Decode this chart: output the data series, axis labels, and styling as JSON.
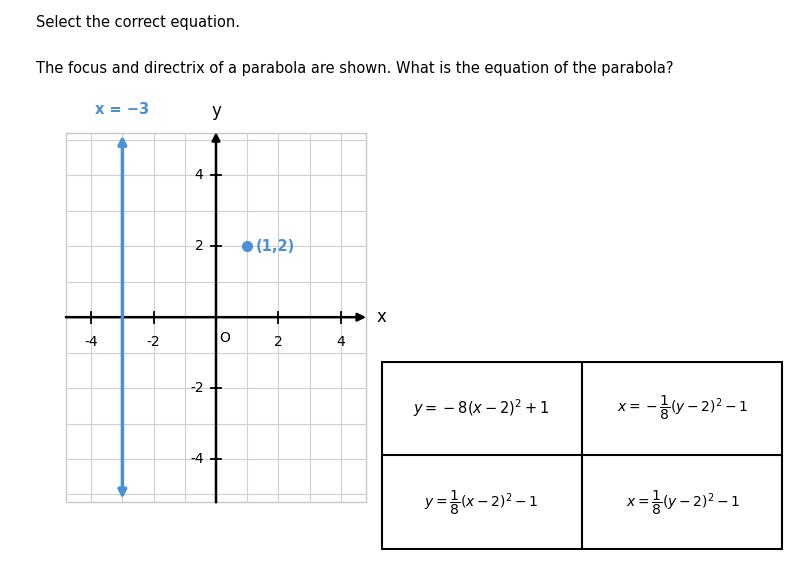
{
  "title_line1": "Select the correct equation.",
  "title_line2": "The focus and directrix of a parabola are shown. What is the equation of the parabola?",
  "directrix_label": "x = −3",
  "directrix_x": -3,
  "focus_x": 1,
  "focus_y": 2,
  "focus_label": "(1,2)",
  "grid_color": "#d0d0d0",
  "axis_color": "#000000",
  "directrix_color": "#4a90d9",
  "focus_color": "#4a90d9",
  "background_color": "#ffffff",
  "graph_box_color": "#c8c8c8",
  "xlim": [
    -5,
    5
  ],
  "ylim": [
    -5.5,
    5.5
  ],
  "xticks": [
    -4,
    -2,
    2,
    4
  ],
  "yticks": [
    -4,
    -2,
    2,
    4
  ],
  "cell_texts_row0": [
    "y = −8(x − 2)² + 1",
    "x = −{1/8}(y − 2)² − 1"
  ],
  "cell_texts_row1": [
    "y = {1/8}(x − 2)² − 1",
    "x = {1/8}(y − 2)² − 1"
  ]
}
